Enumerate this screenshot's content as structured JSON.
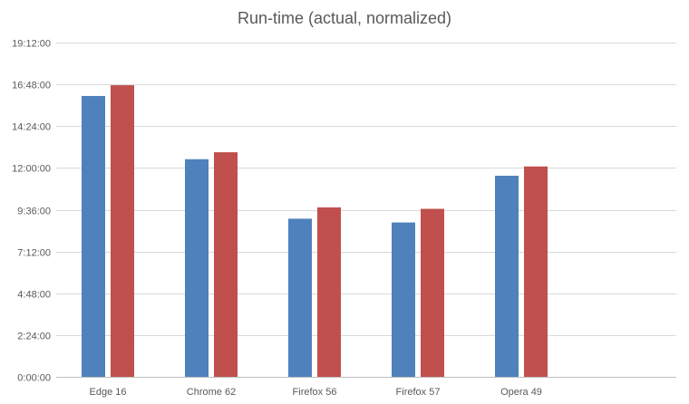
{
  "chart_data": {
    "type": "bar",
    "title": "Run-time (actual, normalized)",
    "xlabel": "",
    "ylabel": "",
    "categories": [
      "Edge 16",
      "Chrome 62",
      "Firefox 56",
      "Firefox 57",
      "Opera 49"
    ],
    "y_ticks": [
      "0:00:00",
      "2:24:00",
      "4:48:00",
      "7:12:00",
      "9:36:00",
      "12:00:00",
      "14:24:00",
      "16:48:00",
      "19:12:00"
    ],
    "ylim_seconds": [
      0,
      69120
    ],
    "y_unit": "h:mm:ss",
    "series": [
      {
        "color": "#4f81bd",
        "values": [
          "16:08:00",
          "12:30:00",
          "9:05:00",
          "8:52:00",
          "11:33:00"
        ],
        "values_seconds": [
          58080,
          45000,
          32700,
          31920,
          41580
        ]
      },
      {
        "color": "#c0504d",
        "values": [
          "16:45:00",
          "12:54:00",
          "9:44:00",
          "9:39:00",
          "12:05:00"
        ],
        "values_seconds": [
          60300,
          46440,
          35040,
          34740,
          43500
        ]
      }
    ],
    "grid": true,
    "legend": "none"
  }
}
